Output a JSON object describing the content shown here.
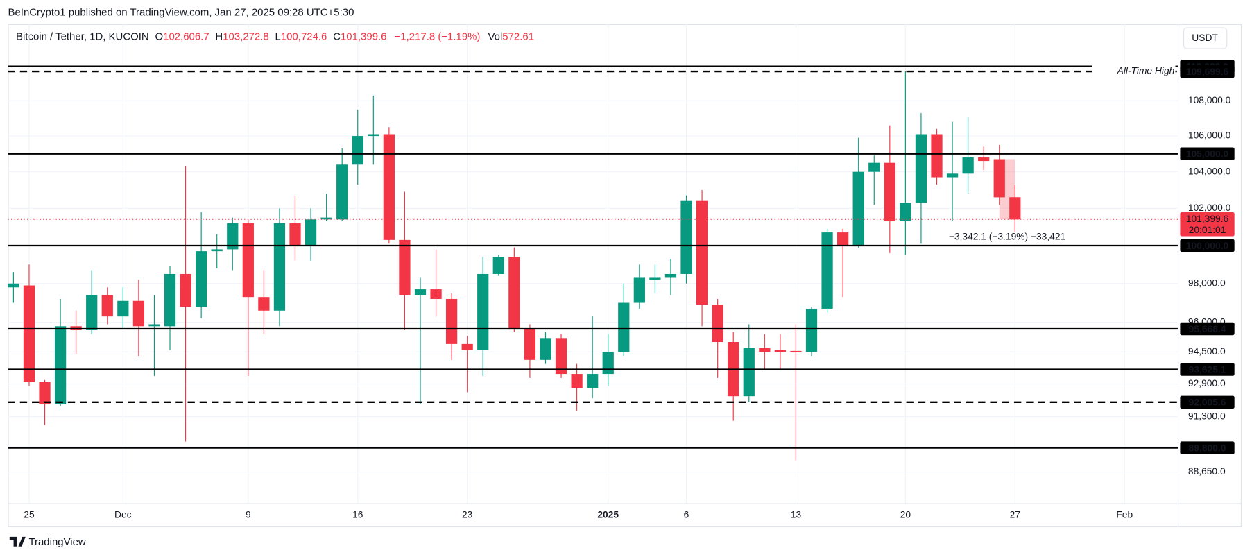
{
  "header": {
    "published": "BeInCrypto1 published on TradingView.com, Jan 27, 2025 09:28 UTC+5:30",
    "brand": "TradingView"
  },
  "chart_data": {
    "type": "candlestick",
    "legend": {
      "symbol": "Bitcoin / Tether, 1D, KUCOIN",
      "open_key": "O",
      "open": "102,606.7",
      "high_key": "H",
      "high": "103,272.8",
      "low_key": "L",
      "low": "100,724.6",
      "close_key": "C",
      "close": "101,399.6",
      "change": "−1,217.8 (−1.19%)",
      "volume_key": "Vol",
      "volume": "572.61"
    },
    "currency": "USDT",
    "x": [
      0,
      1,
      2,
      3,
      4,
      5,
      6,
      7,
      8,
      9,
      10,
      11,
      12,
      13,
      14,
      15,
      16,
      17,
      18,
      19,
      20,
      21,
      22,
      23,
      24,
      25,
      26,
      27,
      28,
      29,
      30,
      31,
      32,
      33,
      34,
      35,
      36,
      37,
      38,
      39,
      40,
      41,
      42,
      43,
      44,
      45,
      46,
      47,
      48,
      49,
      50,
      51,
      52,
      53,
      54,
      55,
      56,
      57,
      58,
      59,
      60,
      61,
      62,
      63,
      64
    ],
    "xlim": [
      -0.35,
      74.4
    ],
    "xticks": [
      {
        "value": 1,
        "label": "25"
      },
      {
        "value": 7,
        "label": "Dec"
      },
      {
        "value": 15,
        "label": "9"
      },
      {
        "value": 22,
        "label": "16"
      },
      {
        "value": 29,
        "label": "23"
      },
      {
        "value": 38,
        "label": "2025"
      },
      {
        "value": 43,
        "label": "6"
      },
      {
        "value": 50,
        "label": "13"
      },
      {
        "value": 57,
        "label": "20"
      },
      {
        "value": 64,
        "label": "27"
      },
      {
        "value": 71,
        "label": "Feb"
      }
    ],
    "ylim": [
      87190,
      112495
    ],
    "log": true,
    "grid": true,
    "yticks": [
      {
        "value": 108000,
        "label": "108,000.0"
      },
      {
        "value": 106000,
        "label": "106,000.0"
      },
      {
        "value": 104000,
        "label": "104,000.0"
      },
      {
        "value": 102000,
        "label": "102,000.0"
      },
      {
        "value": 100000,
        "label": "100,000.0"
      },
      {
        "value": 98000,
        "label": "98,000.0"
      },
      {
        "value": 96000,
        "label": "96,000.0"
      },
      {
        "value": 94500,
        "label": "94,500.0"
      },
      {
        "value": 92900,
        "label": "92,900.0"
      },
      {
        "value": 91300,
        "label": "91,300.0"
      },
      {
        "value": 89850,
        "label": "89,850.0"
      },
      {
        "value": 88650,
        "label": "88,650.0"
      }
    ],
    "open": [
      97800,
      97900,
      93000,
      91900,
      95800,
      95600,
      97400,
      96300,
      97100,
      95800,
      95800,
      98500,
      96800,
      99700,
      99800,
      101200,
      97300,
      96600,
      101200,
      100000,
      101400,
      101400,
      104400,
      106000,
      106100,
      100300,
      97400,
      97700,
      97200,
      94900,
      94600,
      98500,
      99400,
      95700,
      94100,
      95200,
      93400,
      92700,
      93400,
      94500,
      97000,
      98200,
      98300,
      98500,
      102400,
      96900,
      95000,
      92300,
      94700,
      94600,
      94550,
      94500,
      96700,
      100700,
      100000,
      104000,
      104500,
      101300,
      102300,
      106100,
      103700,
      103900,
      104800,
      104700,
      102606.7
    ],
    "high": [
      98600,
      99000,
      93100,
      97200,
      96600,
      98700,
      97800,
      97800,
      98200,
      97400,
      98900,
      104300,
      101800,
      100600,
      101500,
      101400,
      98700,
      102000,
      102700,
      102000,
      102800,
      105300,
      107500,
      108300,
      106500,
      102900,
      98300,
      99800,
      97500,
      95300,
      99400,
      99500,
      99900,
      95900,
      95500,
      95400,
      93900,
      96300,
      95400,
      98000,
      99000,
      99000,
      99300,
      102700,
      103000,
      97200,
      95500,
      95900,
      95400,
      95400,
      95900,
      96800,
      100900,
      100900,
      105900,
      104900,
      106600,
      109700,
      107300,
      106400,
      106800,
      107100,
      105400,
      105500,
      103272.8
    ],
    "low": [
      97000,
      92800,
      90900,
      91800,
      94400,
      95400,
      95900,
      95700,
      94300,
      93300,
      94600,
      90100,
      96200,
      98800,
      98700,
      93300,
      95400,
      95800,
      99200,
      99200,
      101300,
      101300,
      103300,
      104400,
      100100,
      95600,
      91900,
      96300,
      94100,
      92500,
      93300,
      98400,
      95500,
      93200,
      93900,
      93200,
      91600,
      92200,
      92800,
      94300,
      96700,
      97500,
      97400,
      98000,
      95800,
      93200,
      91100,
      92000,
      93600,
      93600,
      89200,
      94300,
      96500,
      97300,
      99900,
      102200,
      99600,
      99500,
      100100,
      103300,
      101300,
      102800,
      104100,
      102200,
      100724.6
    ],
    "close": [
      98000,
      93000,
      91900,
      95800,
      95600,
      97400,
      96300,
      97100,
      95800,
      95900,
      98500,
      96800,
      99700,
      99800,
      101200,
      97300,
      96600,
      101200,
      100000,
      101400,
      101500,
      104400,
      106000,
      106100,
      100300,
      97400,
      97700,
      97200,
      94900,
      94600,
      98500,
      99400,
      95700,
      94100,
      95200,
      93400,
      92700,
      93400,
      94500,
      97000,
      98300,
      98300,
      98500,
      102400,
      96900,
      95000,
      92300,
      94700,
      94500,
      94500,
      94500,
      96700,
      100700,
      100000,
      104000,
      104500,
      101300,
      102300,
      106100,
      103700,
      103900,
      104800,
      104600,
      102600,
      101399.6
    ],
    "up_color": "#089981",
    "down_color": "#f23645",
    "levels": [
      {
        "value": 110000,
        "label": "110,000.0",
        "style": "solid"
      },
      {
        "value": 109699.6,
        "label": "109,699.6",
        "style": "dashed"
      },
      {
        "value": 105000,
        "label": "105,000.0",
        "style": "solid"
      },
      {
        "value": 100000,
        "label": "100,000.0",
        "style": "solid"
      },
      {
        "value": 95668.4,
        "label": "95,668.4",
        "style": "solid"
      },
      {
        "value": 93625.1,
        "label": "93,625.1",
        "style": "solid"
      },
      {
        "value": 92005.6,
        "label": "92,005.6",
        "style": "dashed"
      },
      {
        "value": 89800,
        "label": "89,800.0",
        "style": "solid"
      }
    ],
    "annotation": "All-Time High",
    "last_price": {
      "value": 101399.6,
      "label": "101,399.6",
      "countdown": "20:01:01"
    },
    "measure": "−3,342.1 (−3.19%) −33,421"
  }
}
